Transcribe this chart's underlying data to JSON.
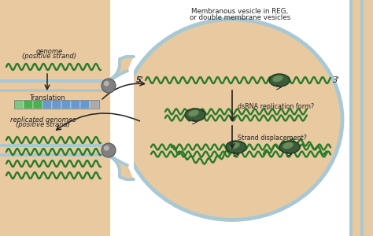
{
  "bg_color": "#E8C9A0",
  "vesicle_fill": "#E8C9A0",
  "mem_color": "#A8C8D4",
  "white_bg": "#FFFFFF",
  "strand_color": "#2A7A2A",
  "text_color": "#222222",
  "title_text1": "Membranous vesicle in REG,",
  "title_text2": "or double membrane vesicles",
  "genome_label1": "genome",
  "genome_label2": "(positive strand)",
  "translation_label": "Translation",
  "replicated_label1": "replicated genomes",
  "replicated_label2": "(positive strand)",
  "label_5prime": "5'",
  "label_3prime": "3'",
  "dsrna_label": "dsRNA replication form?",
  "strand_disp_label": "Strand displacement?",
  "poly_dark": "#3A5C3A",
  "poly_mid": "#4E7050",
  "poly_light": "#6A8C5A",
  "sphere_dark": "#808080",
  "sphere_mid": "#A0A0A0",
  "sphere_light": "#C0C0C0",
  "bar_colors": [
    "#7DC87D",
    "#4CAF50",
    "#4CAF50",
    "#6699CC",
    "#6699CC",
    "#6699CC",
    "#6699CC",
    "#6699CC",
    "#AAAAAA"
  ],
  "bar_border": "#888888",
  "arrow_color": "#111111"
}
